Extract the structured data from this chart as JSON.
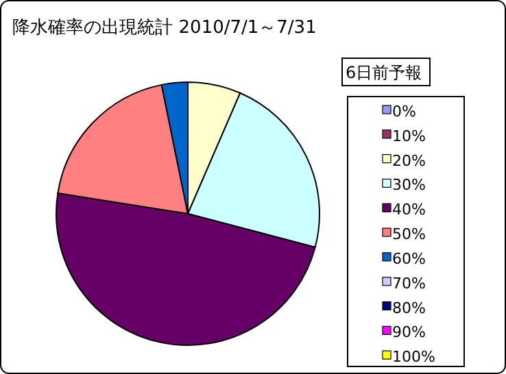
{
  "chart_data": {
    "type": "pie",
    "title": "降水確率の出現統計 2010/7/1～7/31",
    "legend_title": "6日前予報",
    "categories": [
      "0%",
      "10%",
      "20%",
      "30%",
      "40%",
      "50%",
      "60%",
      "70%",
      "80%",
      "90%",
      "100%"
    ],
    "values": [
      0,
      0,
      6.5,
      22.6,
      48.4,
      19.3,
      3.2,
      0,
      0,
      0,
      0
    ],
    "colors": [
      "#9999ff",
      "#993366",
      "#ffffcc",
      "#ccffff",
      "#660066",
      "#ff8080",
      "#0066cc",
      "#ccccff",
      "#000080",
      "#ff00ff",
      "#ffff00"
    ],
    "legend": "right"
  }
}
